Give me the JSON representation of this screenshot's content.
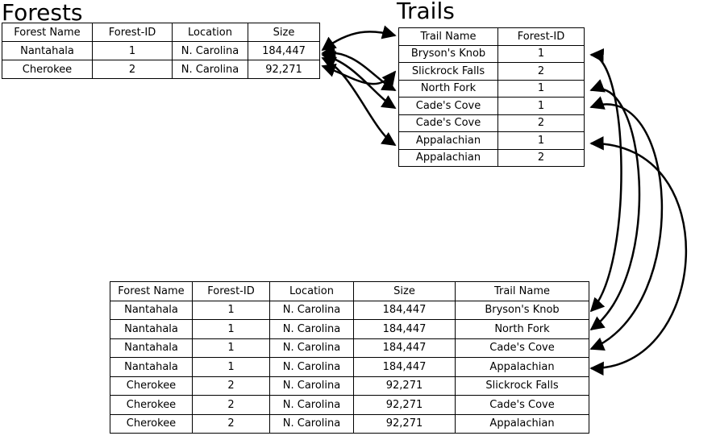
{
  "forests": {
    "title": "Forests",
    "headers": [
      "Forest Name",
      "Forest-ID",
      "Location",
      "Size"
    ],
    "rows": [
      [
        "Nantahala",
        "1",
        "N. Carolina",
        "184,447"
      ],
      [
        "Cherokee",
        "2",
        "N. Carolina",
        "92,271"
      ]
    ]
  },
  "trails": {
    "title": "Trails",
    "headers": [
      "Trail Name",
      "Forest-ID"
    ],
    "rows": [
      [
        "Bryson's Knob",
        "1"
      ],
      [
        "Slickrock Falls",
        "2"
      ],
      [
        "North Fork",
        "1"
      ],
      [
        "Cade's Cove",
        "1"
      ],
      [
        "Cade's Cove",
        "2"
      ],
      [
        "Appalachian",
        "1"
      ],
      [
        "Appalachian",
        "2"
      ]
    ]
  },
  "joined": {
    "headers": [
      "Forest Name",
      "Forest-ID",
      "Location",
      "Size",
      "Trail Name"
    ],
    "rows": [
      [
        "Nantahala",
        "1",
        "N. Carolina",
        "184,447",
        "Bryson's Knob"
      ],
      [
        "Nantahala",
        "1",
        "N. Carolina",
        "184,447",
        "North Fork"
      ],
      [
        "Nantahala",
        "1",
        "N. Carolina",
        "184,447",
        "Cade's Cove"
      ],
      [
        "Nantahala",
        "1",
        "N. Carolina",
        "184,447",
        "Appalachian"
      ],
      [
        "Cherokee",
        "2",
        "N. Carolina",
        "92,271",
        "Slickrock Falls"
      ],
      [
        "Cherokee",
        "2",
        "N. Carolina",
        "92,271",
        "Cade's Cove"
      ],
      [
        "Cherokee",
        "2",
        "N. Carolina",
        "92,271",
        "Appalachian"
      ]
    ]
  },
  "colors": {
    "line": "#000000",
    "background": "#ffffff"
  }
}
